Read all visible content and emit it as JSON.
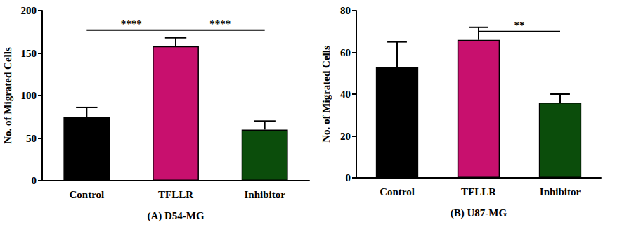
{
  "chart_data": [
    {
      "type": "bar",
      "title": "(A) D54-MG",
      "categories": [
        "Control",
        "TFLLR",
        "Inhibitor"
      ],
      "values": [
        75,
        158,
        60
      ],
      "errors": [
        11,
        10,
        10
      ],
      "colors": [
        "#000000",
        "#c8106e",
        "#0b4d0b"
      ],
      "ylabel": "No. of Migrated Cells",
      "ylim": [
        0,
        200
      ],
      "yticks": [
        0,
        50,
        100,
        150,
        200
      ],
      "grid": false,
      "annotations": [
        {
          "from": "Control",
          "to": "TFLLR",
          "y": 177,
          "label": "****"
        },
        {
          "from": "TFLLR",
          "to": "Inhibitor",
          "y": 177,
          "label": "****"
        }
      ]
    },
    {
      "type": "bar",
      "title": "(B) U87-MG",
      "categories": [
        "Control",
        "TFLLR",
        "Inhibitor"
      ],
      "values": [
        53,
        66,
        36
      ],
      "errors": [
        12,
        6,
        4
      ],
      "colors": [
        "#000000",
        "#c8106e",
        "#0b4d0b"
      ],
      "ylabel": "No. of Migrated Cells",
      "ylim": [
        0,
        80
      ],
      "yticks": [
        0,
        20,
        40,
        60,
        80
      ],
      "grid": false,
      "annotations": [
        {
          "from": "TFLLR",
          "to": "Inhibitor",
          "y": 70,
          "label": "**"
        }
      ]
    }
  ]
}
